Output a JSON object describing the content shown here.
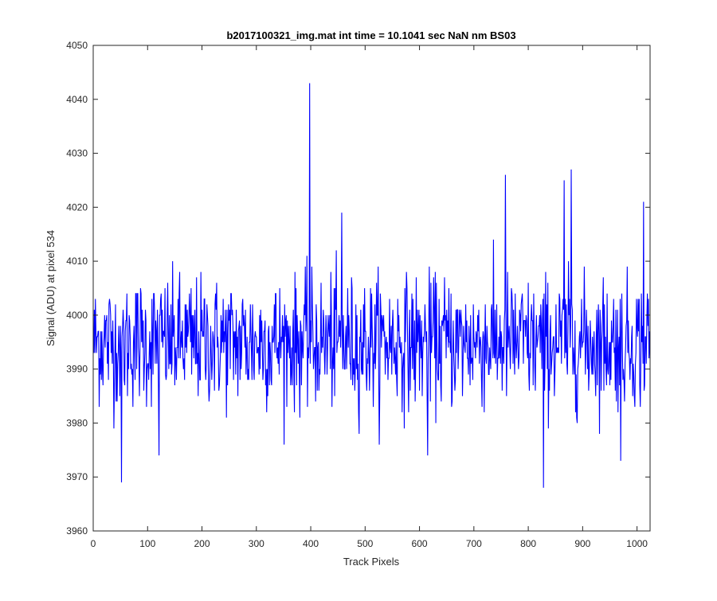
{
  "figure": {
    "background": "#ffffff"
  },
  "chart_data": {
    "type": "line",
    "title": "b2017100321_img.mat int time = 10.1041 sec  NaN nm BS03",
    "xlabel": "Track Pixels",
    "ylabel": "Signal (ADU) at pixel 534",
    "xlim": [
      0,
      1024
    ],
    "ylim": [
      3960,
      4050
    ],
    "xticks": [
      0,
      100,
      200,
      300,
      400,
      500,
      600,
      700,
      800,
      900,
      1000
    ],
    "yticks": [
      3960,
      3970,
      3980,
      3990,
      4000,
      4010,
      4020,
      4030,
      4040,
      4050
    ],
    "grid": false,
    "legend": "none",
    "series": [
      {
        "color": "#0000ff",
        "x_start": 1,
        "x_step": 1,
        "count": 1024,
        "baseline_mean": 3995,
        "noise_std": 6,
        "notable_points": [
          {
            "x": 52,
            "y": 3969
          },
          {
            "x": 121,
            "y": 3974
          },
          {
            "x": 398,
            "y": 4043
          },
          {
            "x": 457,
            "y": 4019
          },
          {
            "x": 615,
            "y": 3974
          },
          {
            "x": 758,
            "y": 4026
          },
          {
            "x": 828,
            "y": 3968
          },
          {
            "x": 866,
            "y": 4025
          },
          {
            "x": 879,
            "y": 4027
          },
          {
            "x": 970,
            "y": 3973
          },
          {
            "x": 1012,
            "y": 4021
          }
        ]
      }
    ]
  }
}
